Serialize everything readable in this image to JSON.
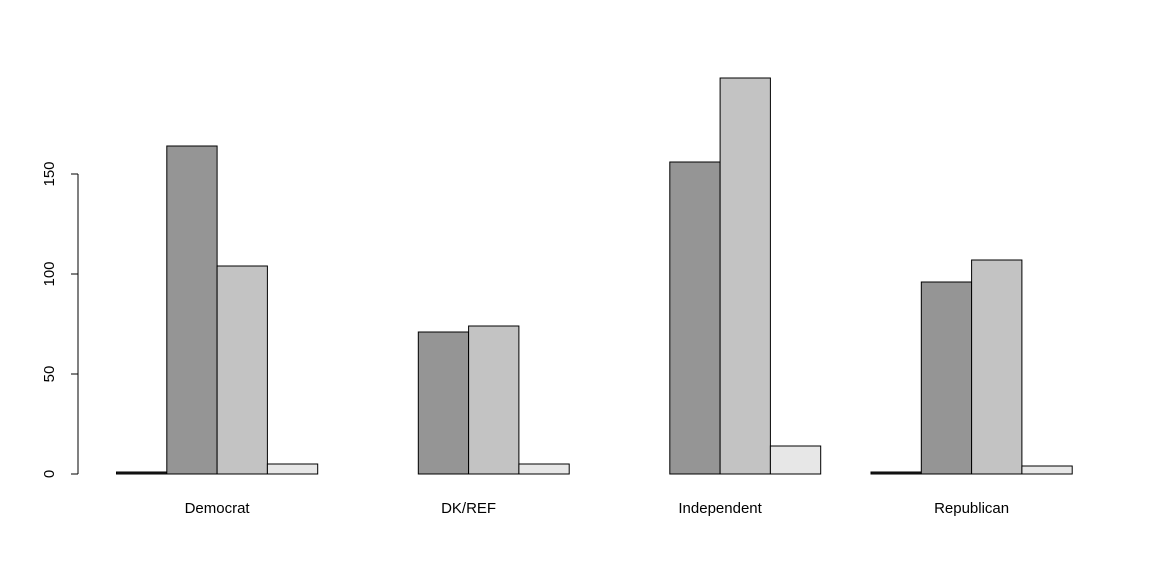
{
  "chart_data": {
    "type": "bar",
    "title": "",
    "xlabel": "",
    "ylabel": "",
    "categories": [
      "Democrat",
      "DK/REF",
      "Independent",
      "Republican"
    ],
    "series": [
      {
        "values": [
          1,
          0,
          0,
          1
        ],
        "color": "#222222"
      },
      {
        "values": [
          164,
          71,
          156,
          96
        ],
        "color": "#959595"
      },
      {
        "values": [
          104,
          74,
          198,
          107
        ],
        "color": "#c3c3c3"
      },
      {
        "values": [
          5,
          5,
          14,
          4
        ],
        "color": "#e7e7e7"
      }
    ],
    "yticks": [
      0,
      50,
      100,
      150
    ],
    "ylim": [
      0,
      198
    ],
    "grid": false,
    "legend": "none"
  }
}
